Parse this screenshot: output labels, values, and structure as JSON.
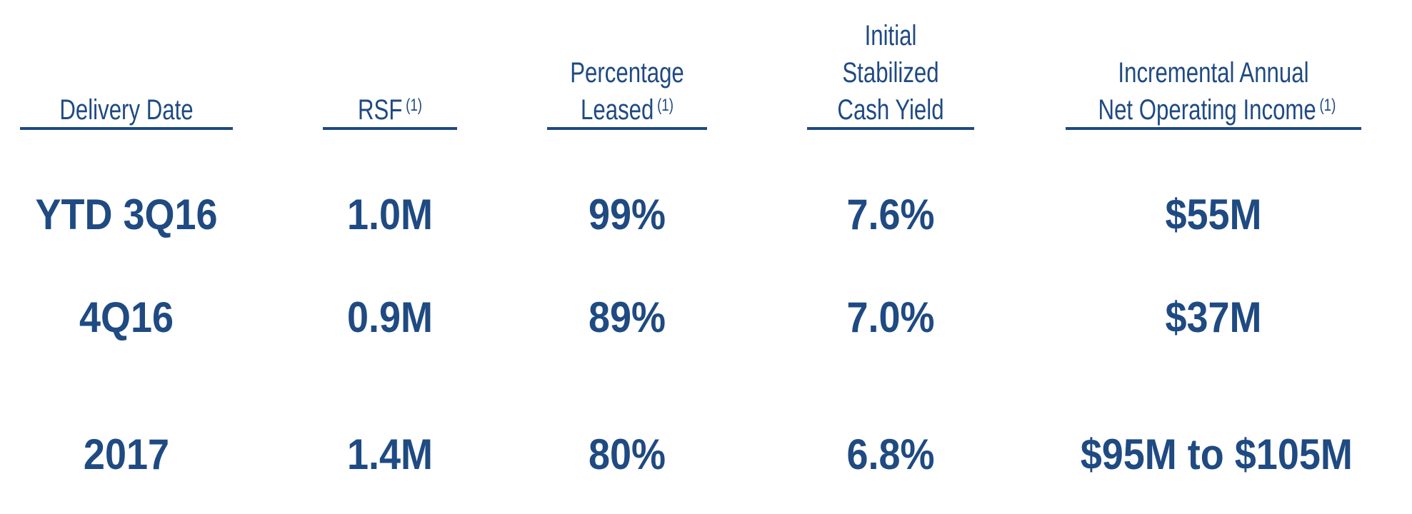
{
  "table": {
    "headers": [
      {
        "lines": [
          "Delivery Date"
        ],
        "footnote": ""
      },
      {
        "lines": [
          "RSF"
        ],
        "footnote": "(1)"
      },
      {
        "lines": [
          "Percentage",
          "Leased"
        ],
        "footnote": "(1)"
      },
      {
        "lines": [
          "Initial",
          "Stabilized",
          "Cash Yield"
        ],
        "footnote": ""
      },
      {
        "lines": [
          "Incremental Annual",
          "Net Operating Income"
        ],
        "footnote": "(1)"
      }
    ],
    "rows": [
      [
        "YTD 3Q16",
        "1.0M",
        "99%",
        "7.6%",
        "$55M"
      ],
      [
        "4Q16",
        "0.9M",
        "89%",
        "7.0%",
        "$37M"
      ],
      [
        "2017",
        "1.4M",
        "80%",
        "6.8%",
        "$95M to $105M"
      ]
    ]
  },
  "colors": {
    "text": "#1f4a82",
    "background": "#ffffff"
  }
}
